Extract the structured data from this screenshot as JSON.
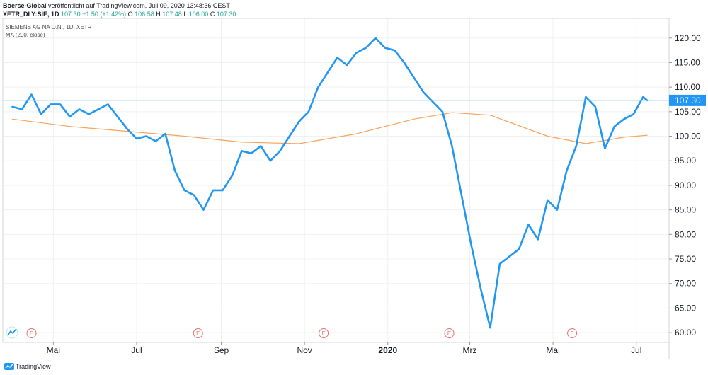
{
  "header": {
    "publisher": "Boerse-Global",
    "published_text": "veröffentlicht auf TradingView.com, Juli 09, 2020 13:48:36 CEST",
    "symbol": "XETR_DLY:SIE, 1D",
    "last": "107.30",
    "change": "+1.50 (+1.42%)",
    "o_label": "O:",
    "o_value": "106.58",
    "h_label": "H:",
    "h_value": "107.48",
    "l_label": "L:",
    "l_value": "106.00",
    "c_label": "C:",
    "c_value": "107.30"
  },
  "legend": {
    "series_name": "SIEMENS AG NA O.N., 1D, XETR",
    "ma_name": "MA (200, close)"
  },
  "footer": {
    "brand": "TradingView"
  },
  "colors": {
    "price_line": "#2196f3",
    "ma_line": "#f7a35c",
    "last_price_bg": "#2196f3",
    "grid": "#eef0f3",
    "earnings": "#e57373"
  },
  "chart_data": {
    "type": "line",
    "title": "SIEMENS AG NA O.N., 1D, XETR",
    "x_axis_labels": [
      "Mai",
      "Jul",
      "Sep",
      "Nov",
      "2020",
      "Mrz",
      "Mai",
      "Jul"
    ],
    "y_ticks": [
      60,
      65,
      70,
      75,
      80,
      85,
      90,
      95,
      100,
      105,
      110,
      115,
      120
    ],
    "y_tick_labels": [
      "60.00",
      "65.00",
      "70.00",
      "75.00",
      "80.00",
      "85.00",
      "90.00",
      "95.00",
      "100.00",
      "105.00",
      "110.00",
      "115.00",
      "120.00"
    ],
    "ylim": [
      58,
      124
    ],
    "last_value": 107.3,
    "last_value_label": "107.30",
    "earnings_marker": "E",
    "earnings_months": [
      "2019-04",
      "2019-08",
      "2019-11",
      "2020-02",
      "2020-05"
    ],
    "grid": true,
    "series": [
      {
        "name": "SIEMENS AG NA O.N., 1D, XETR",
        "color": "#2196f3",
        "x": [
          "2019-04-01",
          "2019-04-08",
          "2019-04-15",
          "2019-04-22",
          "2019-04-29",
          "2019-05-06",
          "2019-05-13",
          "2019-05-20",
          "2019-05-27",
          "2019-06-03",
          "2019-06-10",
          "2019-06-17",
          "2019-06-24",
          "2019-07-01",
          "2019-07-08",
          "2019-07-15",
          "2019-07-22",
          "2019-07-29",
          "2019-08-05",
          "2019-08-12",
          "2019-08-19",
          "2019-08-26",
          "2019-09-02",
          "2019-09-09",
          "2019-09-16",
          "2019-09-23",
          "2019-09-30",
          "2019-10-07",
          "2019-10-14",
          "2019-10-21",
          "2019-10-28",
          "2019-11-04",
          "2019-11-11",
          "2019-11-18",
          "2019-11-25",
          "2019-12-02",
          "2019-12-09",
          "2019-12-16",
          "2019-12-23",
          "2019-12-30",
          "2020-01-06",
          "2020-01-13",
          "2020-01-20",
          "2020-01-27",
          "2020-02-03",
          "2020-02-10",
          "2020-02-17",
          "2020-02-24",
          "2020-03-02",
          "2020-03-09",
          "2020-03-16",
          "2020-03-23",
          "2020-03-30",
          "2020-04-06",
          "2020-04-13",
          "2020-04-20",
          "2020-04-27",
          "2020-05-04",
          "2020-05-11",
          "2020-05-18",
          "2020-05-25",
          "2020-06-01",
          "2020-06-08",
          "2020-06-15",
          "2020-06-22",
          "2020-06-29",
          "2020-07-06",
          "2020-07-09"
        ],
        "values": [
          106,
          105.5,
          108.5,
          104.5,
          106.5,
          106.5,
          104,
          105.5,
          104.5,
          105.5,
          106.5,
          104,
          101.5,
          99.5,
          100,
          99,
          100.5,
          93,
          89,
          88,
          85,
          89,
          89,
          92,
          97,
          96.5,
          98,
          95,
          97,
          100,
          103,
          105,
          110,
          113,
          116,
          114.5,
          117,
          118,
          120,
          118,
          117.5,
          115,
          112,
          109,
          107,
          105,
          98,
          88,
          78,
          69,
          61,
          74,
          75.5,
          77,
          82,
          79,
          87,
          85,
          93,
          98,
          108,
          106,
          97.5,
          102,
          103.5,
          104.5,
          108,
          107.3
        ]
      },
      {
        "name": "MA (200, close)",
        "color": "#f7a35c",
        "x": [
          "2019-04-01",
          "2019-05-13",
          "2019-06-24",
          "2019-08-05",
          "2019-09-16",
          "2019-10-28",
          "2019-12-09",
          "2020-01-20",
          "2020-02-17",
          "2020-03-16",
          "2020-04-27",
          "2020-05-25",
          "2020-06-22",
          "2020-07-09"
        ],
        "values": [
          103.5,
          102,
          101,
          100,
          98.8,
          98.5,
          100.5,
          103.5,
          104.8,
          104.3,
          100,
          98.5,
          99.8,
          100.2
        ]
      }
    ]
  }
}
